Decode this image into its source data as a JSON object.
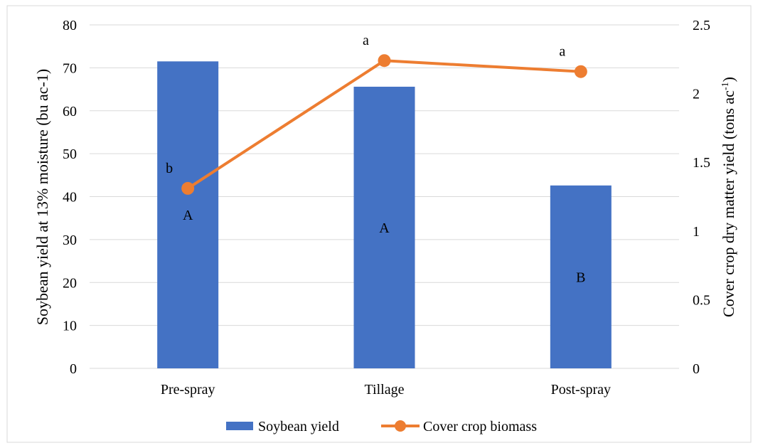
{
  "colors": {
    "bar": "#4472c4",
    "line": "#ed7d31",
    "grid": "#d9d9d9",
    "frame": "#d9d9d9"
  },
  "chart_data": {
    "type": "bar",
    "categories": [
      "Pre-spray",
      "Tillage",
      "Post-spray"
    ],
    "bar_series": {
      "name": "Soybean yield",
      "values": [
        71.5,
        65.6,
        42.6
      ],
      "annotations": [
        "A",
        "A",
        "B"
      ]
    },
    "line_series": {
      "name": "Cover crop biomass",
      "values": [
        1.31,
        2.24,
        2.16
      ],
      "annotations": [
        "b",
        "a",
        "a"
      ]
    },
    "y_left": {
      "label": "Soybean yield at 13% moisture (bu ac-1)",
      "ticks": [
        "0",
        "10",
        "20",
        "30",
        "40",
        "50",
        "60",
        "70",
        "80"
      ],
      "lim": [
        0,
        80
      ]
    },
    "y_right": {
      "label": "Cover  crop dry matter yield (tons ac",
      "label_sup": "-1",
      "label_end": ")",
      "ticks": [
        "0",
        "0.5",
        "1",
        "1.5",
        "2",
        "2.5"
      ],
      "lim": [
        0,
        2.5
      ]
    },
    "grid": true,
    "legend_position": "bottom"
  }
}
